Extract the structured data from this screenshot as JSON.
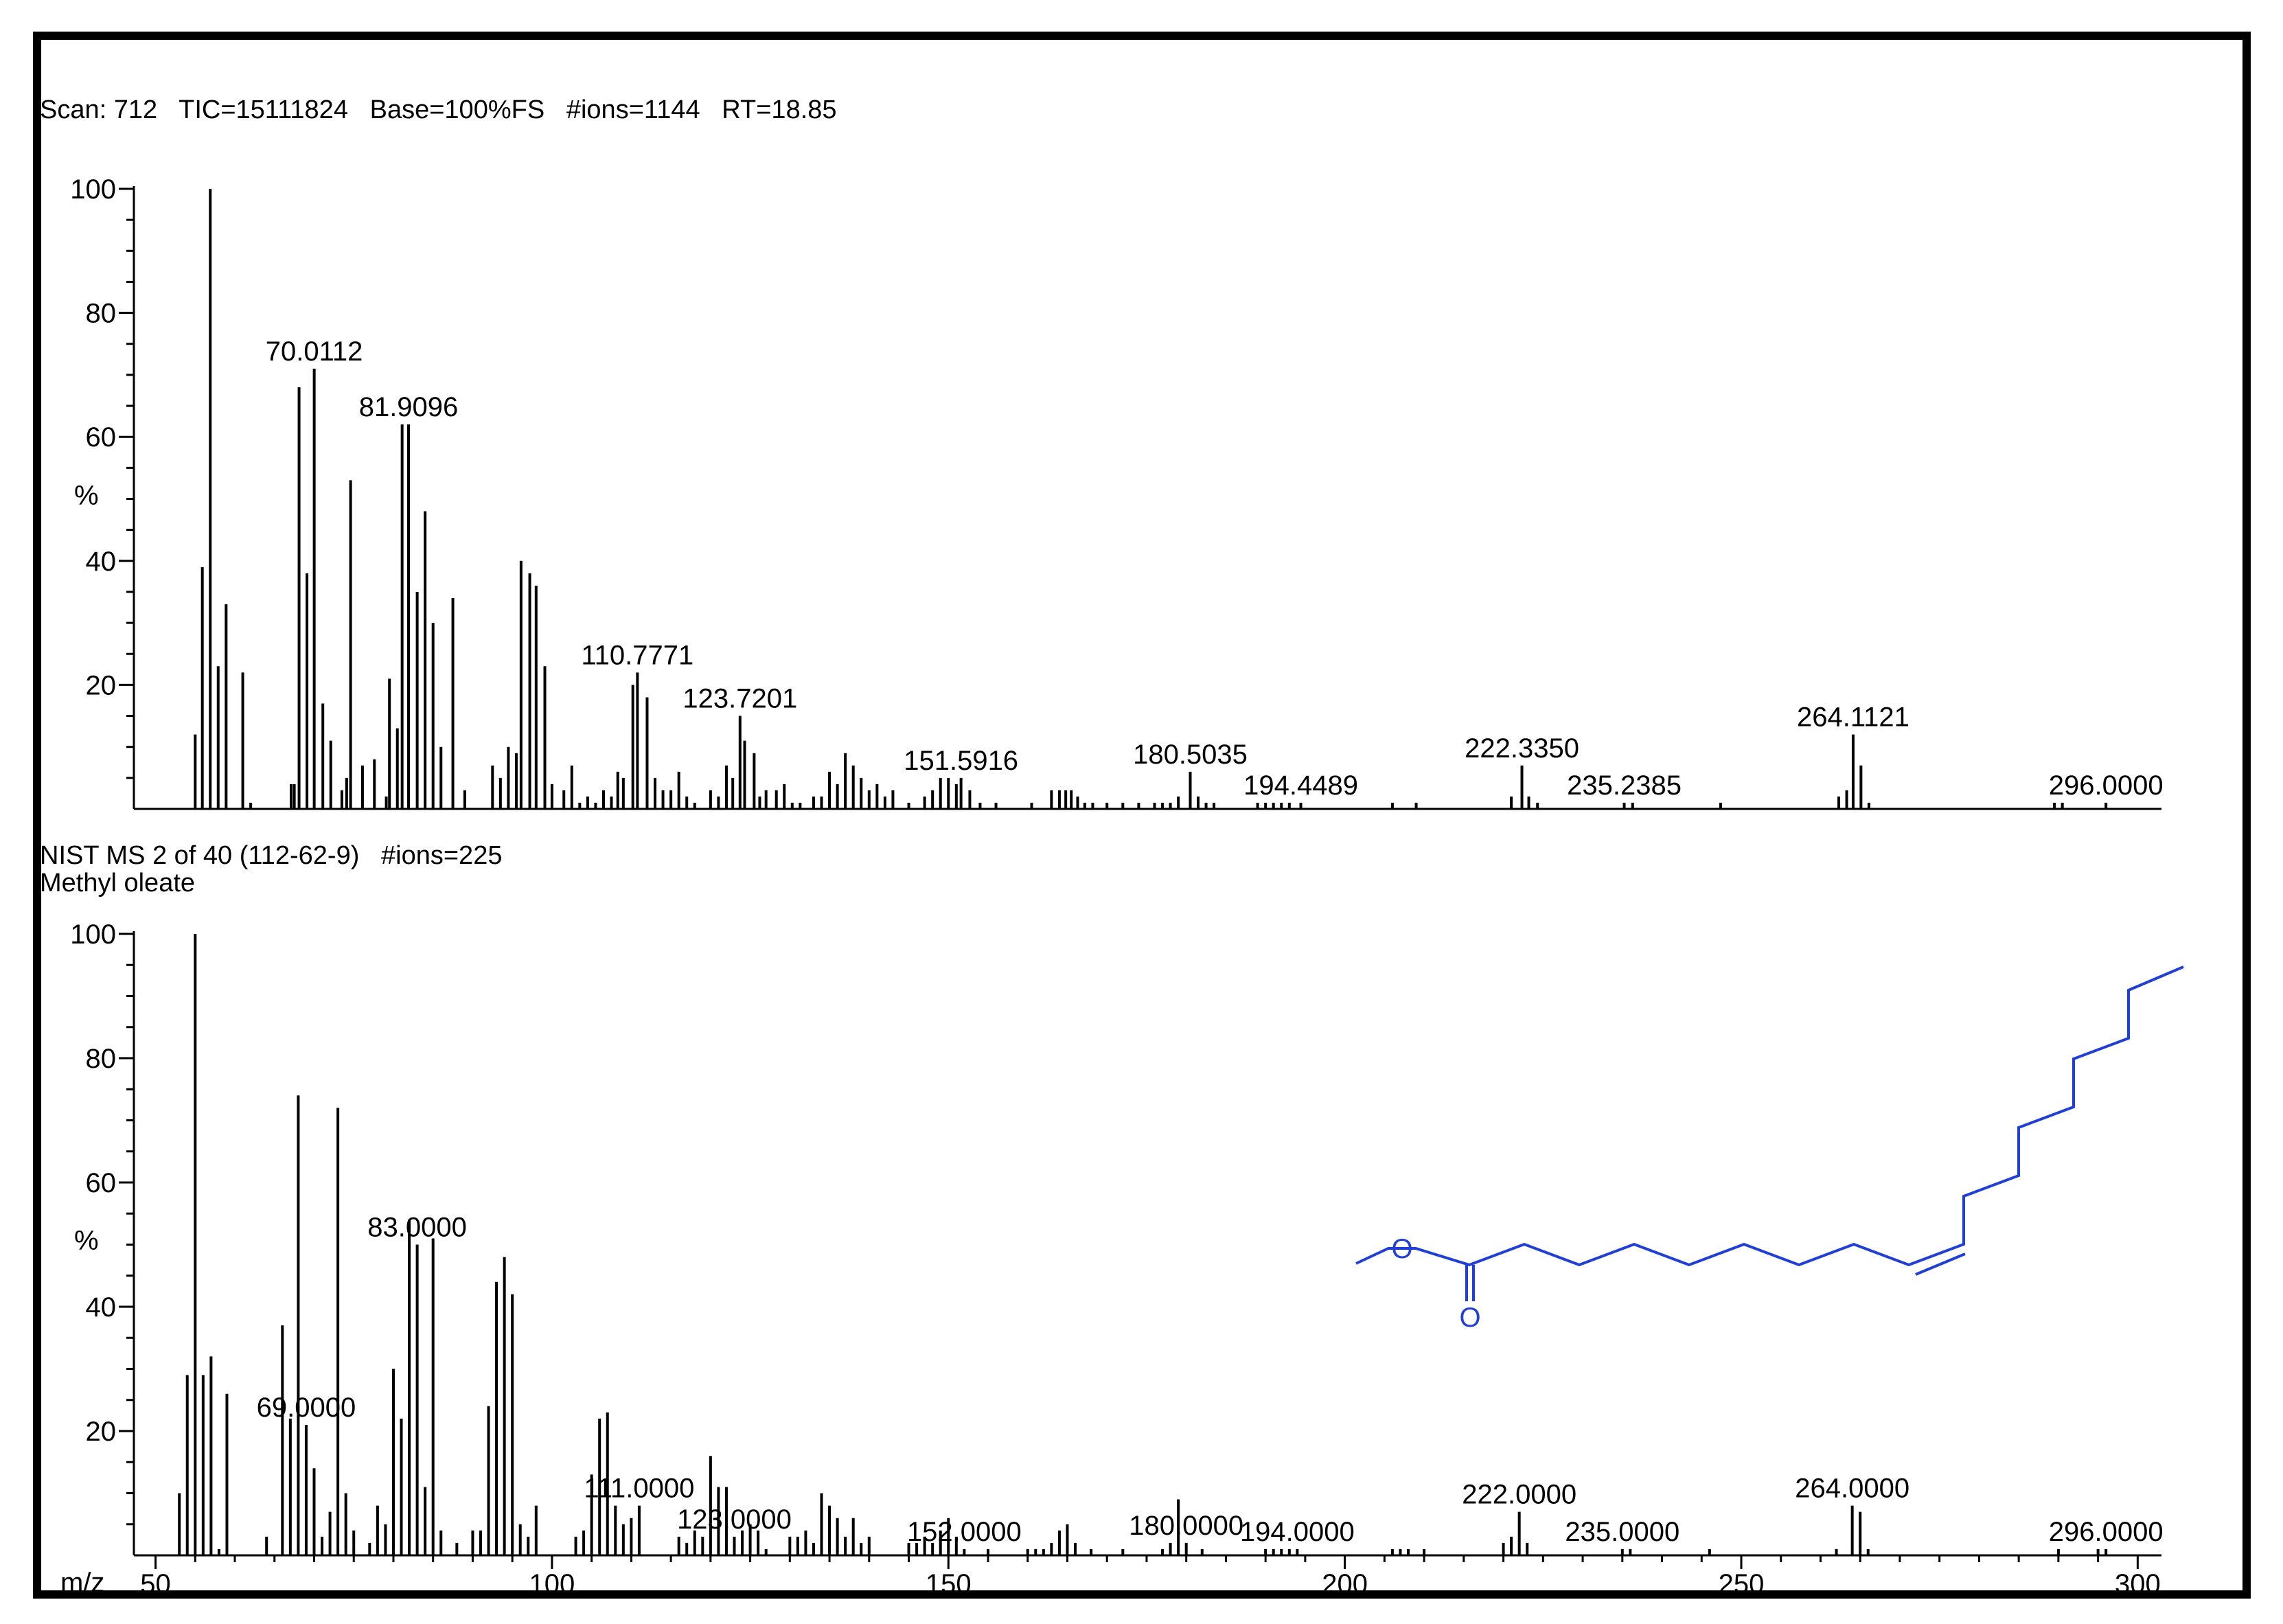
{
  "top_panel": {
    "header": "Scan: 712   TIC=15111824   Base=100%FS   #ions=1144   RT=18.85"
  },
  "bottom_panel": {
    "header_line1": "NIST MS 2 of 40 (112-62-9)   #ions=225",
    "header_line2": "Methyl oleate",
    "structure_labels": {
      "ether_oxygen": "O",
      "carbonyl_oxygen": "O"
    }
  },
  "axis": {
    "y_unit_label": "%",
    "x_unit_label": "m/z",
    "y_ticks": [
      "20",
      "40",
      "60",
      "80",
      "100"
    ],
    "x_ticks": [
      "50",
      "100",
      "150",
      "200",
      "250",
      "300"
    ]
  },
  "colors": {
    "bars": "#000000",
    "structure": "#1f3fd6",
    "frame": "#000000"
  },
  "chart_data": [
    {
      "type": "bar",
      "title": "Scan: 712   TIC=15111824   Base=100%FS   #ions=1144   RT=18.85",
      "xlabel": "m/z",
      "ylabel": "%",
      "xlim": [
        49,
        303
      ],
      "ylim": [
        0,
        100
      ],
      "peaks": [
        [
          55.0,
          12
        ],
        [
          55.9,
          39
        ],
        [
          56.9,
          100
        ],
        [
          57.9,
          23
        ],
        [
          58.9,
          33
        ],
        [
          61.0,
          22
        ],
        [
          62.0,
          1
        ],
        [
          67.1,
          4
        ],
        [
          67.5,
          4
        ],
        [
          68.1,
          68
        ],
        [
          69.1,
          38
        ],
        [
          70.0112,
          71
        ],
        [
          71.1,
          17
        ],
        [
          72.1,
          11
        ],
        [
          73.5,
          3
        ],
        [
          74.1,
          5
        ],
        [
          74.6,
          53
        ],
        [
          76.1,
          7
        ],
        [
          77.6,
          8
        ],
        [
          79.1,
          2
        ],
        [
          79.5,
          21
        ],
        [
          80.5,
          13
        ],
        [
          81.1,
          62
        ],
        [
          81.9096,
          62
        ],
        [
          83.0,
          35
        ],
        [
          84.0,
          48
        ],
        [
          85.0,
          30
        ],
        [
          86.0,
          10
        ],
        [
          87.5,
          34
        ],
        [
          89.0,
          3
        ],
        [
          92.5,
          7
        ],
        [
          93.5,
          5
        ],
        [
          94.5,
          10
        ],
        [
          95.5,
          9
        ],
        [
          96.1,
          40
        ],
        [
          97.2,
          38
        ],
        [
          98.0,
          36
        ],
        [
          99.1,
          23
        ],
        [
          100.0,
          4
        ],
        [
          101.5,
          3
        ],
        [
          102.5,
          7
        ],
        [
          103.5,
          1
        ],
        [
          104.5,
          2
        ],
        [
          105.5,
          1
        ],
        [
          106.5,
          3
        ],
        [
          107.5,
          2
        ],
        [
          108.3,
          6
        ],
        [
          109.0,
          5
        ],
        [
          110.2,
          20
        ],
        [
          110.7771,
          22
        ],
        [
          112.0,
          18
        ],
        [
          113.0,
          5
        ],
        [
          114.0,
          3
        ],
        [
          115.0,
          3
        ],
        [
          116.0,
          6
        ],
        [
          117.0,
          2
        ],
        [
          118.0,
          1
        ],
        [
          120.0,
          3
        ],
        [
          121.0,
          2
        ],
        [
          122.0,
          7
        ],
        [
          122.8,
          5
        ],
        [
          123.7201,
          15
        ],
        [
          124.3,
          11
        ],
        [
          125.5,
          9
        ],
        [
          126.2,
          2
        ],
        [
          127.0,
          3
        ],
        [
          128.3,
          3
        ],
        [
          129.3,
          4
        ],
        [
          130.3,
          1
        ],
        [
          131.3,
          1
        ],
        [
          133.0,
          2
        ],
        [
          134.0,
          2
        ],
        [
          135.0,
          6
        ],
        [
          136.0,
          4
        ],
        [
          137.0,
          9
        ],
        [
          138.0,
          7
        ],
        [
          139.0,
          5
        ],
        [
          140.0,
          3
        ],
        [
          141.0,
          4
        ],
        [
          142.0,
          2
        ],
        [
          143.0,
          3
        ],
        [
          145.0,
          1
        ],
        [
          147.0,
          2
        ],
        [
          148.0,
          3
        ],
        [
          149.0,
          5
        ],
        [
          150.0,
          5
        ],
        [
          151.0,
          4
        ],
        [
          151.5916,
          5
        ],
        [
          152.7,
          3
        ],
        [
          154.0,
          1
        ],
        [
          156.0,
          1
        ],
        [
          160.5,
          1
        ],
        [
          163.0,
          3
        ],
        [
          164.0,
          3
        ],
        [
          164.8,
          3
        ],
        [
          165.5,
          3
        ],
        [
          166.3,
          2
        ],
        [
          167.2,
          1
        ],
        [
          168.2,
          1
        ],
        [
          170.0,
          1
        ],
        [
          172.0,
          1
        ],
        [
          174.0,
          1
        ],
        [
          176.0,
          1
        ],
        [
          177.0,
          1
        ],
        [
          178.0,
          1
        ],
        [
          179.0,
          2
        ],
        [
          180.5035,
          6
        ],
        [
          181.5,
          2
        ],
        [
          182.5,
          1
        ],
        [
          183.5,
          1
        ],
        [
          189.0,
          1
        ],
        [
          190.0,
          1
        ],
        [
          191.0,
          1
        ],
        [
          192.0,
          1
        ],
        [
          193.0,
          1
        ],
        [
          194.4489,
          1
        ],
        [
          206.0,
          1
        ],
        [
          209.0,
          1
        ],
        [
          221.0,
          2
        ],
        [
          222.335,
          7
        ],
        [
          223.2,
          2
        ],
        [
          224.3,
          1
        ],
        [
          235.2385,
          1
        ],
        [
          236.3,
          1
        ],
        [
          247.4,
          1
        ],
        [
          262.3,
          2
        ],
        [
          263.3,
          3
        ],
        [
          264.1121,
          12
        ],
        [
          265.1,
          7
        ],
        [
          266.1,
          1
        ],
        [
          289.5,
          1
        ],
        [
          290.5,
          1
        ],
        [
          296.0,
          1
        ]
      ],
      "annotations": [
        "70.0112",
        "81.9096",
        "110.7771",
        "123.7201",
        "151.5916",
        "180.5035",
        "194.4489",
        "222.3350",
        "235.2385",
        "264.1121",
        "296.0000"
      ]
    },
    {
      "type": "bar",
      "title": "NIST MS 2 of 40 (112-62-9)   #ions=225",
      "subtitle": "Methyl oleate",
      "xlabel": "m/z",
      "ylabel": "%",
      "xlim": [
        49,
        303
      ],
      "ylim": [
        0,
        100
      ],
      "peaks": [
        [
          53.0,
          10
        ],
        [
          54.0,
          29
        ],
        [
          55.0,
          100
        ],
        [
          56.0,
          29
        ],
        [
          57.0,
          32
        ],
        [
          58.0,
          1
        ],
        [
          59.0,
          26
        ],
        [
          64.0,
          3
        ],
        [
          66.0,
          37
        ],
        [
          67.0,
          22
        ],
        [
          68.0,
          74
        ],
        [
          69.0,
          21
        ],
        [
          70.0,
          14
        ],
        [
          71.0,
          3
        ],
        [
          72.0,
          7
        ],
        [
          73.0,
          72
        ],
        [
          74.0,
          10
        ],
        [
          75.0,
          4
        ],
        [
          77.0,
          2
        ],
        [
          78.0,
          8
        ],
        [
          79.0,
          5
        ],
        [
          80.0,
          30
        ],
        [
          81.0,
          22
        ],
        [
          82.0,
          54
        ],
        [
          83.0,
          50
        ],
        [
          84.0,
          11
        ],
        [
          85.0,
          51
        ],
        [
          86.0,
          4
        ],
        [
          88.0,
          2
        ],
        [
          90.0,
          4
        ],
        [
          91.0,
          4
        ],
        [
          92.0,
          24
        ],
        [
          93.0,
          44
        ],
        [
          94.0,
          48
        ],
        [
          95.0,
          42
        ],
        [
          96.0,
          5
        ],
        [
          97.0,
          3
        ],
        [
          98.0,
          8
        ],
        [
          103.0,
          3
        ],
        [
          104.0,
          4
        ],
        [
          105.0,
          13
        ],
        [
          106.0,
          22
        ],
        [
          107.0,
          23
        ],
        [
          108.0,
          8
        ],
        [
          109.0,
          5
        ],
        [
          110.0,
          6
        ],
        [
          111.0,
          8
        ],
        [
          116.0,
          3
        ],
        [
          117.0,
          2
        ],
        [
          118.0,
          4
        ],
        [
          119.0,
          3
        ],
        [
          120.0,
          16
        ],
        [
          121.0,
          11
        ],
        [
          122.0,
          11
        ],
        [
          123.0,
          3
        ],
        [
          124.0,
          4
        ],
        [
          125.0,
          5
        ],
        [
          126.0,
          4
        ],
        [
          127.0,
          1
        ],
        [
          130.0,
          3
        ],
        [
          131.0,
          3
        ],
        [
          132.0,
          4
        ],
        [
          133.0,
          2
        ],
        [
          134.0,
          10
        ],
        [
          135.0,
          8
        ],
        [
          136.0,
          6
        ],
        [
          137.0,
          3
        ],
        [
          138.0,
          6
        ],
        [
          139.0,
          2
        ],
        [
          140.0,
          3
        ],
        [
          145.0,
          2
        ],
        [
          146.0,
          2
        ],
        [
          147.0,
          3
        ],
        [
          148.0,
          2
        ],
        [
          149.0,
          4
        ],
        [
          150.0,
          6
        ],
        [
          151.0,
          3
        ],
        [
          152.0,
          1
        ],
        [
          155.0,
          1
        ],
        [
          160.0,
          1
        ],
        [
          161.0,
          1
        ],
        [
          162.0,
          1
        ],
        [
          163.0,
          2
        ],
        [
          164.0,
          4
        ],
        [
          165.0,
          5
        ],
        [
          166.0,
          2
        ],
        [
          168.0,
          1
        ],
        [
          172.0,
          1
        ],
        [
          177.0,
          1
        ],
        [
          178.0,
          2
        ],
        [
          179.0,
          9
        ],
        [
          180.0,
          2
        ],
        [
          182.0,
          1
        ],
        [
          190.0,
          1
        ],
        [
          191.0,
          1
        ],
        [
          192.0,
          1
        ],
        [
          193.0,
          1
        ],
        [
          194.0,
          1
        ],
        [
          206.0,
          1
        ],
        [
          207.0,
          1
        ],
        [
          208.0,
          1
        ],
        [
          210.0,
          1
        ],
        [
          220.0,
          2
        ],
        [
          221.0,
          3
        ],
        [
          222.0,
          7
        ],
        [
          223.0,
          2
        ],
        [
          235.0,
          1
        ],
        [
          236.0,
          1
        ],
        [
          246.0,
          1
        ],
        [
          262.0,
          1
        ],
        [
          264.0,
          8
        ],
        [
          265.0,
          7
        ],
        [
          266.0,
          1
        ],
        [
          290.0,
          1
        ],
        [
          295.0,
          1
        ],
        [
          296.0,
          1
        ]
      ],
      "annotations": [
        "69.0000",
        "83.0000",
        "111.0000",
        "123.0000",
        "152.0000",
        "180.0000",
        "194.0000",
        "222.0000",
        "235.0000",
        "264.0000",
        "296.0000"
      ]
    }
  ]
}
